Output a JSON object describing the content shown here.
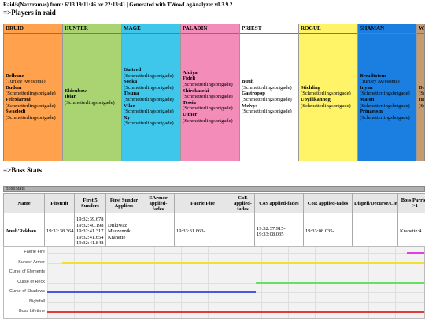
{
  "header": {
    "text": "Raid/s(Naxxramas) from: 6/13 19:11:46 to: 22:13:41 | Generated with TWowLogAnalyzer v0.3.9.2"
  },
  "players_title": "=>Players in raid",
  "boss_stats_title": "=>Boss Stats",
  "classes": [
    {
      "name": "DRUID",
      "color": "#ff7c0a",
      "bg": "#ffa14d",
      "players": [
        {
          "name": "Delhune",
          "guild": "(Turtley Awesome)"
        },
        {
          "name": "Dudem",
          "guild": "(Schmetterlingsbrigade)"
        },
        {
          "name": "Felexiaroni",
          "guild": "(Schmetterlingsbrigade)"
        },
        {
          "name": "Swaelodi",
          "guild": "(Schmetterlingsbrigade)"
        }
      ]
    },
    {
      "name": "HUNTER",
      "color": "#8dc85a",
      "bg": "#aad372",
      "players": [
        {
          "name": "Eldenbow",
          "guild": ""
        },
        {
          "name": "Ibiar",
          "guild": "(Schmetterlingsbrigade)"
        }
      ]
    },
    {
      "name": "MAGE",
      "color": "#3fc7eb",
      "bg": "#3fc7eb",
      "players": [
        {
          "name": "Gultred",
          "guild": "(Schmetterlingsbrigade)"
        },
        {
          "name": "Sooka",
          "guild": "(Schmetterlingsbrigade)"
        },
        {
          "name": "Tisuna",
          "guild": "(Schmetterlingsbrigade)"
        },
        {
          "name": "Vilae",
          "guild": "(Schmetterlingsbrigade)"
        },
        {
          "name": "Xy",
          "guild": "(Schmetterlingsbrigade)"
        }
      ]
    },
    {
      "name": "PALADIN",
      "color": "#f48cba",
      "bg": "#f48cba",
      "players": [
        {
          "name": "Aluiya",
          "guild": ""
        },
        {
          "name": "Fideli",
          "guild": "(Schmetterlingsbrigade)"
        },
        {
          "name": "Shirokaseki",
          "guild": "(Schmetterlingsbrigade)"
        },
        {
          "name": "Tessia",
          "guild": "(Schmetterlingsbrigade)"
        },
        {
          "name": "Ulther",
          "guild": "(Schmetterlingsbrigade)"
        }
      ]
    },
    {
      "name": "PRIEST",
      "color": "#ffffff",
      "bg": "#ffffff",
      "players": [
        {
          "name": "Buuh",
          "guild": "(Schmetterlingsbrigade)"
        },
        {
          "name": "Gastropop",
          "guild": "(Schmetterlingsbrigade)"
        },
        {
          "name": "Melvys",
          "guild": "(Schmetterlingsbrigade)"
        }
      ]
    },
    {
      "name": "ROGUE",
      "color": "#fff468",
      "bg": "#fff468",
      "players": [
        {
          "name": "Stichling",
          "guild": "(Schmetterlingsbrigade)"
        },
        {
          "name": "Uoyillkannog",
          "guild": "(Schmetterlingsbrigade)"
        }
      ]
    },
    {
      "name": "SHAMAN",
      "color": "#0070dd",
      "bg": "#1a7fe0",
      "players": [
        {
          "name": "Breadtotem",
          "guild": "(Turtley Awesome)"
        },
        {
          "name": "Inyan",
          "guild": "(Schmetterlingsbrigade)"
        },
        {
          "name": "Maion",
          "guild": "(Schmetterlingsbrigade)"
        },
        {
          "name": "Prinzessin",
          "guild": "(Schmetterlingsbrigade)"
        }
      ]
    },
    {
      "name": "WA",
      "color": "#c69b6d",
      "bg": "#c69b6d",
      "players": [
        {
          "name": "De",
          "guild": "(Sc"
        },
        {
          "name": "He",
          "guild": "(Sc"
        }
      ]
    }
  ],
  "boss_bar": {
    "label": "BossStats"
  },
  "stats_table": {
    "headers": [
      "Name",
      "FirstHit",
      "First 5 Sunders",
      "First Sunder Appliers",
      "EArmor applied-fades",
      "Faerie Fire",
      "CoE applied-fades",
      "CoS applied-fades",
      "CoR applied-fades",
      "Dispell/Decurse/Cleanse...",
      "Boss Parried >1",
      ""
    ],
    "row": {
      "name": "Anub'Rekhan",
      "firsthit": "19:32:38.364",
      "sunders": "19:32:39.678\n19:32:40.198\n19:32:41.317\n19:32:41.654\n19:32:41.848",
      "appliers": "Drikiwaz\nMeczennik\nKranette",
      "earmor": "",
      "faerie": "19:33:31.863-",
      "coe": "",
      "cos": "19:32:37.915-\n19:33:08.035",
      "cor": "19:33:08.035-",
      "dispel": "",
      "parried": "Kranette:4",
      "extra": ""
    }
  },
  "timeline": {
    "rows": [
      {
        "label": "Faerie Fire",
        "color": "#e040e0",
        "start": 0.95,
        "end": 1.0
      },
      {
        "label": "Sunder Armor",
        "color": "#f2e02a",
        "start": 0.04,
        "end": 1.0
      },
      {
        "label": "Curse of Elements",
        "color": "",
        "start": 0,
        "end": 0
      },
      {
        "label": "Curse of Reck",
        "color": "#66e060",
        "start": 0.55,
        "end": 1.0
      },
      {
        "label": "Curse of Shadows",
        "color": "#4a58e0",
        "start": 0.0,
        "end": 0.55
      },
      {
        "label": "Nightfall",
        "color": "",
        "start": 0,
        "end": 0
      },
      {
        "label": "Boss Lifetime",
        "color": "#e03a3a",
        "start": 0.0,
        "end": 1.0
      }
    ]
  }
}
